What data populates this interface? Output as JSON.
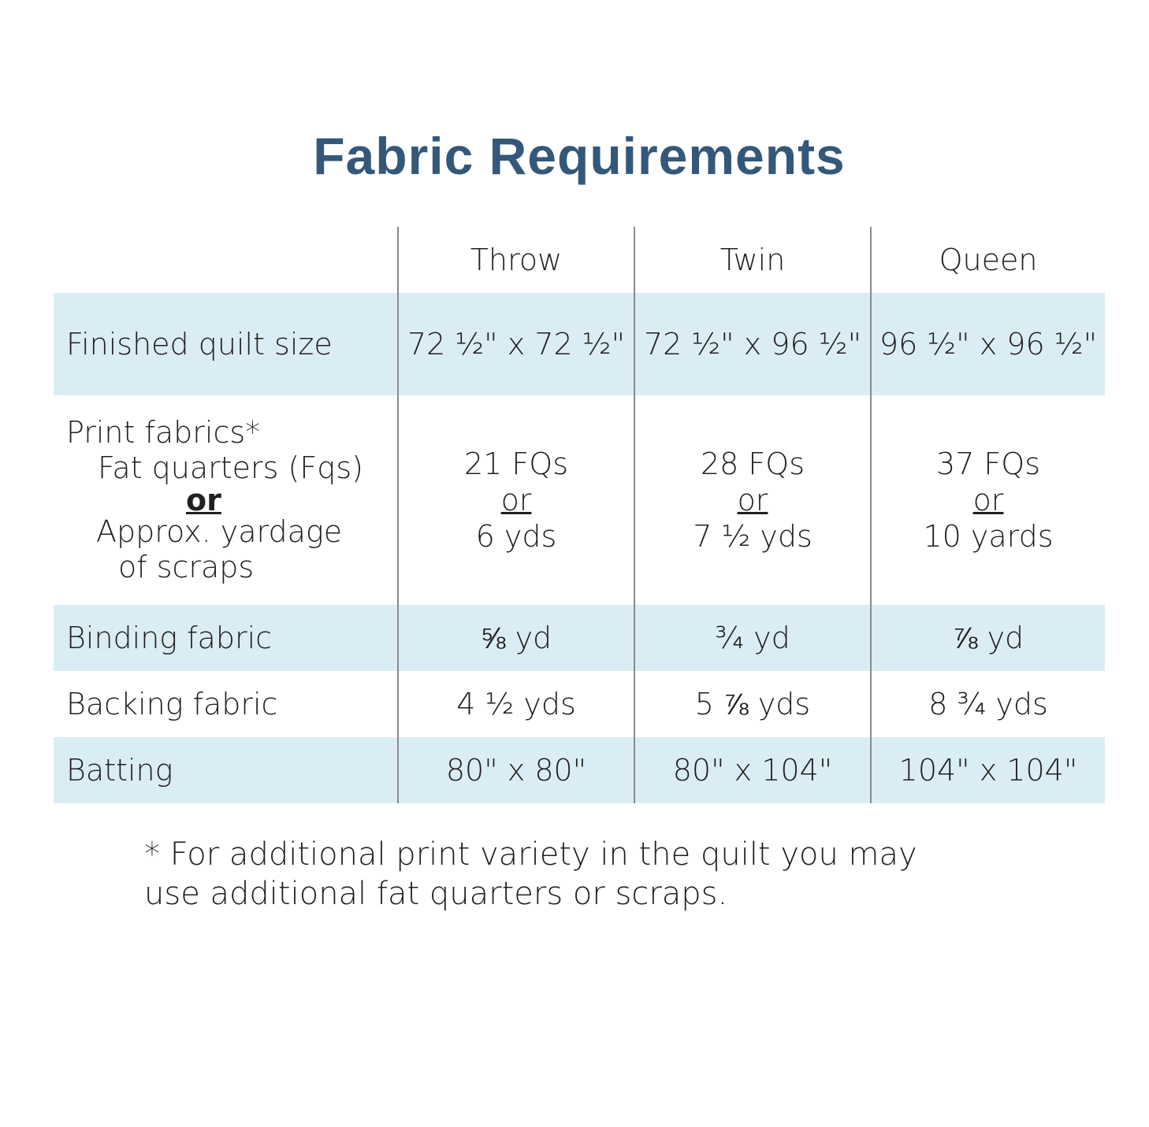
{
  "title": "Fabric Requirements",
  "columns": [
    "Throw",
    "Twin",
    "Queen"
  ],
  "rows": [
    {
      "label": "Finished quilt size",
      "values": [
        "72 ½\" x 72 ½\"",
        "72 ½\" x 96 ½\"",
        "96 ½\" x 96 ½\""
      ]
    },
    {
      "label_lines": [
        "Print fabrics*",
        "Fat quarters (Fqs)",
        "or",
        "Approx. yardage",
        "of scraps"
      ],
      "values": [
        [
          "21 FQs",
          "or",
          "6 yds"
        ],
        [
          "28 FQs",
          "or",
          "7 ½ yds"
        ],
        [
          "37 FQs",
          "or",
          "10 yards"
        ]
      ]
    },
    {
      "label": "Binding fabric",
      "values": [
        "⅝ yd",
        "¾ yd",
        "⅞ yd"
      ]
    },
    {
      "label": "Backing fabric",
      "values": [
        "4 ½ yds",
        "5 ⅞ yds",
        "8 ¾ yds"
      ]
    },
    {
      "label": "Batting",
      "values": [
        "80\" x 80\"",
        "80\" x 104\"",
        "104\" x 104\""
      ]
    }
  ],
  "footnote_lines": [
    "* For additional print variety in the quilt you may",
    "use additional fat quarters or scraps."
  ],
  "colors": {
    "title": "#33587a",
    "band": "#daedf4",
    "text": "#231f20",
    "divider": "#8a8a8a"
  }
}
